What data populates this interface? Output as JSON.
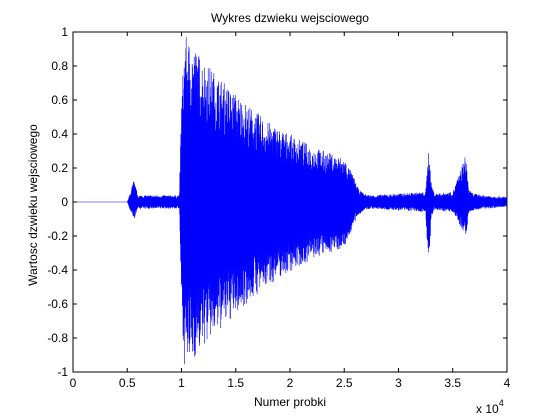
{
  "chart_data": {
    "type": "line",
    "title": "Wykres dzwieku wejsciowego",
    "xlabel": "Numer probki",
    "ylabel": "Wartosc dzwieku wejsciowego",
    "x_exponent_label": "x 10",
    "x_exponent_power": "4",
    "xlim": [
      0,
      40000
    ],
    "ylim": [
      -1,
      1
    ],
    "x_ticks": [
      0,
      5000,
      10000,
      15000,
      20000,
      25000,
      30000,
      35000,
      40000
    ],
    "x_tick_labels": [
      "0",
      "0.5",
      "1",
      "1.5",
      "2",
      "2.5",
      "3",
      "3.5",
      "4"
    ],
    "y_ticks": [
      1,
      0.8,
      0.6,
      0.4,
      0.2,
      0,
      -0.2,
      -0.4,
      -0.6,
      -0.8,
      -1
    ],
    "y_tick_labels": [
      "1",
      "0.8",
      "0.6",
      "0.4",
      "0.2",
      "0",
      "-0.2",
      "-0.4",
      "-0.6",
      "-0.8",
      "-1"
    ],
    "grid": false,
    "line_color": "#0000ff",
    "series": [
      {
        "values_note_envelope": [],
        "x": [
          0,
          5000,
          5200,
          5600,
          6000,
          9800,
          10000,
          10300,
          11000,
          12000,
          14000,
          16000,
          18000,
          20000,
          22000,
          24000,
          25000,
          25800,
          26300,
          26800,
          27500,
          30000,
          32500,
          32800,
          33000,
          33300,
          35000,
          36200,
          36500,
          36900,
          38000,
          40000
        ],
        "upper": [
          0,
          0,
          0.04,
          0.13,
          0.04,
          0.04,
          0.62,
          0.98,
          0.93,
          0.84,
          0.7,
          0.58,
          0.47,
          0.4,
          0.33,
          0.28,
          0.26,
          0.16,
          0.08,
          0.05,
          0.04,
          0.05,
          0.06,
          0.34,
          0.12,
          0.05,
          0.06,
          0.28,
          0.07,
          0.05,
          0.04,
          0.03
        ],
        "lower": [
          0,
          0,
          -0.04,
          -0.11,
          -0.04,
          -0.04,
          -0.63,
          -0.97,
          -0.94,
          -0.85,
          -0.73,
          -0.6,
          -0.49,
          -0.41,
          -0.34,
          -0.29,
          -0.27,
          -0.15,
          -0.08,
          -0.05,
          -0.04,
          -0.05,
          -0.06,
          -0.43,
          -0.11,
          -0.05,
          -0.06,
          -0.2,
          -0.07,
          -0.05,
          -0.04,
          -0.03
        ]
      }
    ]
  }
}
